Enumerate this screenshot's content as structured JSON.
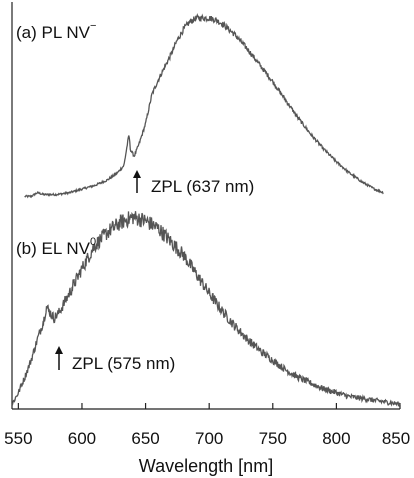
{
  "chart_data": {
    "type": "line",
    "xlabel": "Wavelength [nm]",
    "xlim": [
      545,
      850
    ],
    "xticks": [
      550,
      600,
      650,
      700,
      750,
      800,
      850
    ],
    "xtick_labels": [
      "550",
      "600",
      "650",
      "700",
      "750",
      "800",
      "850"
    ],
    "ylabel": "",
    "y_ticks_shown": false,
    "grid": false,
    "panels": [
      {
        "id": "a",
        "label_prefix": "(a) PL NV",
        "label_superscript": "−",
        "x_range": [
          555,
          837
        ],
        "points": [
          [
            555,
            0.02
          ],
          [
            560,
            0.02
          ],
          [
            565,
            0.04
          ],
          [
            570,
            0.03
          ],
          [
            580,
            0.03
          ],
          [
            590,
            0.04
          ],
          [
            600,
            0.06
          ],
          [
            610,
            0.08
          ],
          [
            620,
            0.11
          ],
          [
            628,
            0.15
          ],
          [
            633,
            0.19
          ],
          [
            636,
            0.32
          ],
          [
            637,
            0.36
          ],
          [
            638,
            0.28
          ],
          [
            641,
            0.24
          ],
          [
            645,
            0.31
          ],
          [
            650,
            0.42
          ],
          [
            655,
            0.58
          ],
          [
            660,
            0.66
          ],
          [
            665,
            0.73
          ],
          [
            670,
            0.8
          ],
          [
            675,
            0.88
          ],
          [
            680,
            0.94
          ],
          [
            685,
            0.98
          ],
          [
            690,
            1.0
          ],
          [
            695,
            1.0
          ],
          [
            700,
            1.0
          ],
          [
            705,
            0.99
          ],
          [
            710,
            0.97
          ],
          [
            720,
            0.91
          ],
          [
            730,
            0.83
          ],
          [
            740,
            0.74
          ],
          [
            750,
            0.65
          ],
          [
            760,
            0.55
          ],
          [
            770,
            0.45
          ],
          [
            780,
            0.36
          ],
          [
            790,
            0.28
          ],
          [
            800,
            0.21
          ],
          [
            810,
            0.15
          ],
          [
            820,
            0.1
          ],
          [
            830,
            0.06
          ],
          [
            837,
            0.04
          ]
        ],
        "annotation": {
          "text": "ZPL (637 nm)",
          "x": 637
        }
      },
      {
        "id": "b",
        "label_prefix": "(b) EL NV",
        "label_superscript": "0",
        "x_range": [
          545,
          850
        ],
        "points": [
          [
            545,
            0.02
          ],
          [
            550,
            0.08
          ],
          [
            555,
            0.16
          ],
          [
            560,
            0.25
          ],
          [
            565,
            0.36
          ],
          [
            570,
            0.46
          ],
          [
            572,
            0.53
          ],
          [
            575,
            0.5
          ],
          [
            578,
            0.47
          ],
          [
            582,
            0.5
          ],
          [
            590,
            0.6
          ],
          [
            600,
            0.73
          ],
          [
            610,
            0.85
          ],
          [
            620,
            0.92
          ],
          [
            630,
            0.97
          ],
          [
            640,
            1.0
          ],
          [
            650,
            0.98
          ],
          [
            660,
            0.94
          ],
          [
            670,
            0.87
          ],
          [
            680,
            0.8
          ],
          [
            690,
            0.7
          ],
          [
            700,
            0.6
          ],
          [
            710,
            0.51
          ],
          [
            720,
            0.43
          ],
          [
            730,
            0.36
          ],
          [
            740,
            0.3
          ],
          [
            750,
            0.25
          ],
          [
            760,
            0.2
          ],
          [
            770,
            0.16
          ],
          [
            780,
            0.13
          ],
          [
            790,
            0.1
          ],
          [
            800,
            0.08
          ],
          [
            810,
            0.06
          ],
          [
            820,
            0.05
          ],
          [
            830,
            0.04
          ],
          [
            840,
            0.03
          ],
          [
            850,
            0.02
          ]
        ],
        "annotation": {
          "text": "ZPL (575 nm)",
          "x": 575
        }
      }
    ]
  }
}
